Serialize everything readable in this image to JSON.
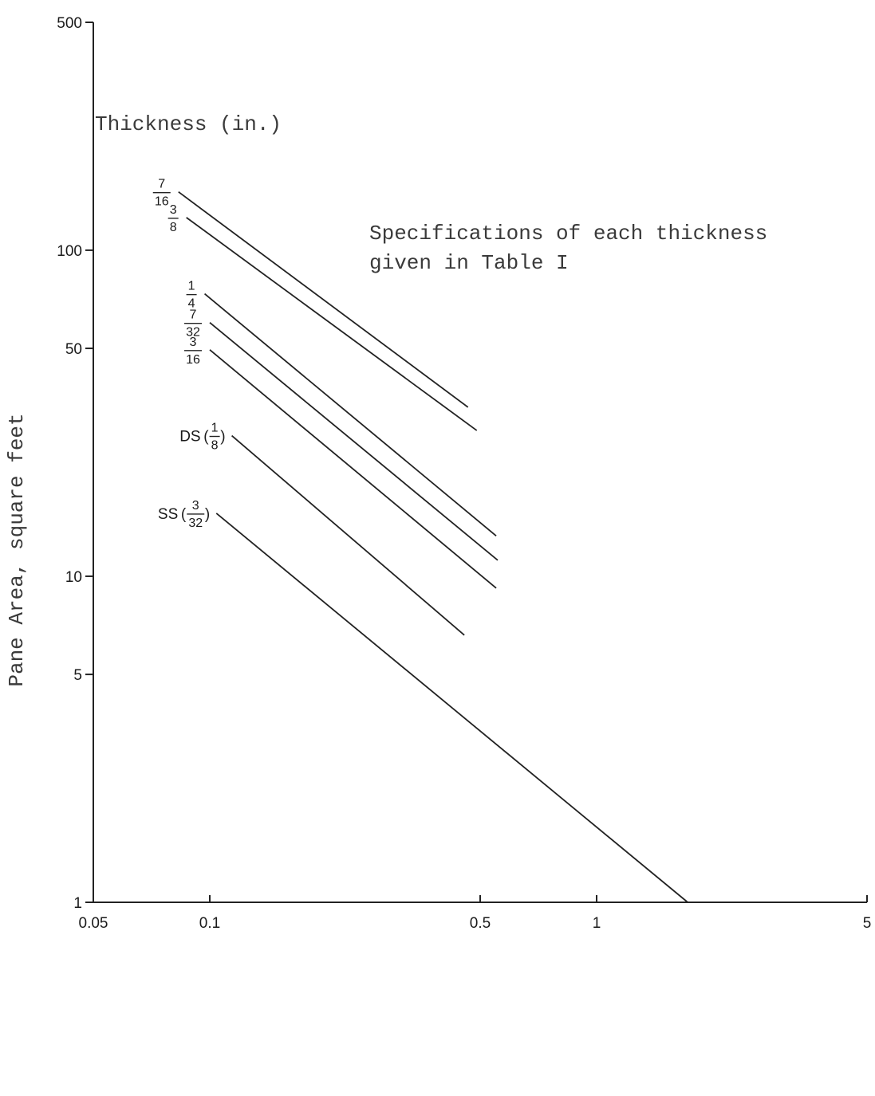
{
  "chart_data": {
    "type": "line",
    "xscale": "log",
    "yscale": "log",
    "xlim": [
      0.05,
      5
    ],
    "ylim": [
      1,
      500
    ],
    "xticks": [
      "0.05",
      "0.1",
      "0.5",
      "1",
      "5"
    ],
    "xtick_values": [
      0.05,
      0.1,
      0.5,
      1,
      5
    ],
    "yticks": [
      "1",
      "5",
      "10",
      "50",
      "100",
      "500"
    ],
    "ytick_values": [
      1,
      5,
      10,
      50,
      100,
      500
    ],
    "xlabel": "",
    "ylabel": "Pane Area, square feet",
    "legend_title": "Thickness (in.)",
    "annotation": [
      "Specifications of each thickness",
      "given in Table I"
    ],
    "series": [
      {
        "name": "7/16",
        "prefix": "",
        "num": "7",
        "den": "16",
        "paren": false,
        "x": [
          0.083,
          0.465
        ],
        "y": [
          151,
          33
        ]
      },
      {
        "name": "3/8",
        "prefix": "",
        "num": "3",
        "den": "8",
        "paren": false,
        "x": [
          0.087,
          0.49
        ],
        "y": [
          126,
          28
        ]
      },
      {
        "name": "1/4",
        "prefix": "",
        "num": "1",
        "den": "4",
        "paren": false,
        "x": [
          0.097,
          0.55
        ],
        "y": [
          73.5,
          13.3
        ]
      },
      {
        "name": "7/32",
        "prefix": "",
        "num": "7",
        "den": "32",
        "paren": false,
        "x": [
          0.1,
          0.555
        ],
        "y": [
          60,
          11.2
        ]
      },
      {
        "name": "3/16",
        "prefix": "",
        "num": "3",
        "den": "16",
        "paren": false,
        "x": [
          0.1,
          0.55
        ],
        "y": [
          49.5,
          9.2
        ]
      },
      {
        "name": "DS (1/8)",
        "prefix": "DS",
        "num": "1",
        "den": "8",
        "paren": true,
        "x": [
          0.114,
          0.455
        ],
        "y": [
          27,
          6.6
        ]
      },
      {
        "name": "SS (3/32)",
        "prefix": "SS",
        "num": "3",
        "den": "32",
        "paren": true,
        "x": [
          0.104,
          1.72
        ],
        "y": [
          15.6,
          1
        ]
      }
    ]
  }
}
